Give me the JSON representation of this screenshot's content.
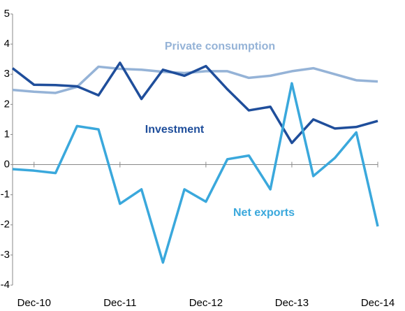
{
  "chart_data": {
    "type": "line",
    "categories": [
      null,
      "Dec-10",
      null,
      null,
      null,
      "Dec-11",
      null,
      null,
      null,
      "Dec-12",
      null,
      null,
      null,
      "Dec-13",
      null,
      null,
      null,
      "Dec-14"
    ],
    "series": [
      {
        "name": "Private consumption",
        "color": "#95b3d7",
        "values": [
          2.48,
          2.42,
          2.38,
          2.58,
          3.25,
          3.18,
          3.15,
          3.08,
          3.04,
          3.1,
          3.1,
          2.88,
          2.95,
          3.1,
          3.2,
          3.0,
          2.8,
          2.76
        ]
      },
      {
        "name": "Investment",
        "color": "#1f4e9b",
        "values": [
          3.2,
          2.65,
          2.64,
          2.6,
          2.3,
          3.38,
          2.18,
          3.15,
          2.95,
          3.27,
          2.5,
          1.8,
          1.92,
          0.72,
          1.5,
          1.2,
          1.25,
          1.45
        ]
      },
      {
        "name": "Net exports",
        "color": "#3aa8dc",
        "values": [
          -0.15,
          -0.2,
          -0.28,
          1.28,
          1.17,
          -1.3,
          -0.82,
          -3.25,
          -0.82,
          -1.23,
          0.18,
          0.3,
          -0.82,
          2.7,
          -0.38,
          0.22,
          1.07,
          -2.05
        ]
      }
    ],
    "ylim": [
      -4,
      5
    ],
    "yticks": [
      -4,
      -3,
      -2,
      -1,
      0,
      1,
      2,
      3,
      4,
      5
    ]
  }
}
